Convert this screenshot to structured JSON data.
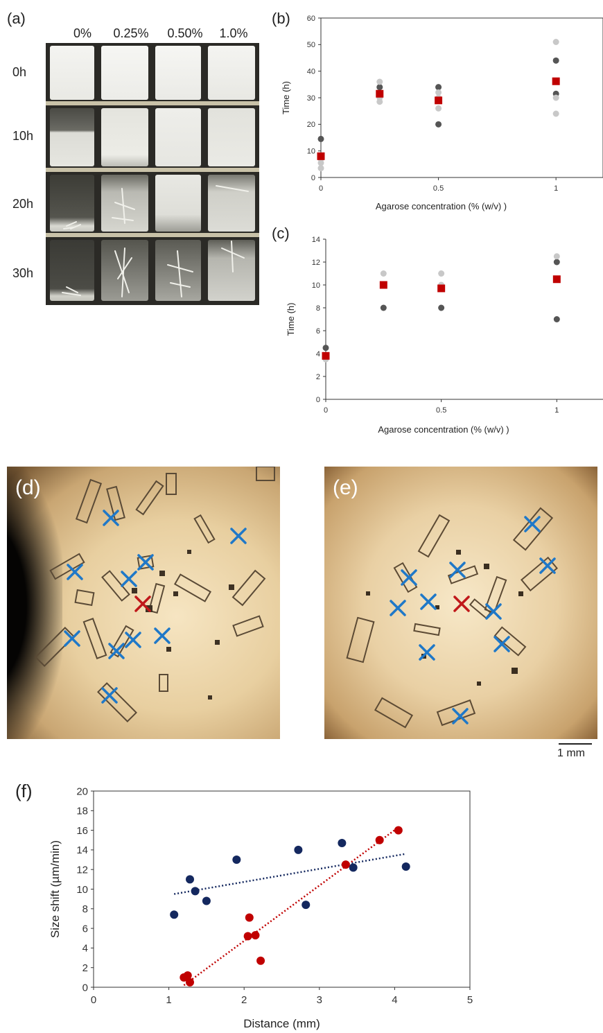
{
  "panel_a": {
    "letter": "(a)",
    "columns": [
      "0%",
      "0.25%",
      "0.50%",
      "1.0%"
    ],
    "rows": [
      "0h",
      "10h",
      "20h",
      "30h"
    ]
  },
  "chart_data": [
    {
      "panel": "(b)",
      "type": "scatter",
      "xlabel": "Agarose concentration (% (w/v) )",
      "ylabel": "Time (h)",
      "xlim": [
        0,
        1.2
      ],
      "ylim": [
        0,
        60
      ],
      "yticks": [
        0,
        10,
        20,
        30,
        40,
        50,
        60
      ],
      "xticks": [
        "0",
        "0.5",
        "1"
      ],
      "xtick_values": [
        0,
        0.5,
        1
      ],
      "series": [
        {
          "role": "replicates-dark",
          "color": "#555555",
          "x": [
            0,
            0.25,
            0.5,
            0.5,
            1,
            1
          ],
          "y": [
            14.5,
            34,
            34,
            20,
            44,
            31.5
          ]
        },
        {
          "role": "replicates-light",
          "color": "#c8c8c8",
          "x": [
            0,
            0,
            0,
            0.25,
            0.25,
            0.25,
            0.5,
            0.5,
            0.5,
            1,
            1,
            1
          ],
          "y": [
            3.5,
            5.5,
            7,
            36,
            30,
            28.5,
            32,
            30,
            26,
            51,
            30,
            24
          ]
        },
        {
          "role": "mean",
          "color": "#c00000",
          "marker": "square",
          "x": [
            0,
            0.25,
            0.5,
            1
          ],
          "y": [
            8,
            31.5,
            29,
            36.2
          ]
        }
      ]
    },
    {
      "panel": "(c)",
      "type": "scatter",
      "xlabel": "Agarose concentration (% (w/v) )",
      "ylabel": "Time (h)",
      "xlim": [
        0,
        1.2
      ],
      "ylim": [
        0,
        14
      ],
      "yticks": [
        0,
        2,
        4,
        6,
        8,
        10,
        12,
        14
      ],
      "xticks": [
        "0",
        "0.5",
        "1"
      ],
      "xtick_values": [
        0,
        0.5,
        1
      ],
      "series": [
        {
          "role": "replicates-dark",
          "color": "#555555",
          "x": [
            0,
            0.25,
            0.5,
            1,
            1
          ],
          "y": [
            4.5,
            8,
            8,
            7,
            12
          ]
        },
        {
          "role": "replicates-light",
          "color": "#c8c8c8",
          "x": [
            0,
            0.25,
            0.5,
            0.5,
            1
          ],
          "y": [
            3.5,
            11,
            11,
            10,
            12.5
          ]
        },
        {
          "role": "mean",
          "color": "#c00000",
          "marker": "square",
          "x": [
            0,
            0.25,
            0.5,
            1
          ],
          "y": [
            3.8,
            10,
            9.7,
            10.5
          ]
        }
      ]
    },
    {
      "panel": "(f)",
      "type": "scatter",
      "xlabel": "Distance (mm)",
      "ylabel": "Size shift (µm/min)",
      "xlim": [
        0,
        5
      ],
      "ylim": [
        0,
        20
      ],
      "xticks": [
        0,
        1,
        2,
        3,
        4,
        5
      ],
      "yticks": [
        0,
        2,
        4,
        6,
        8,
        10,
        12,
        14,
        16,
        18,
        20
      ],
      "series": [
        {
          "role": "blue",
          "color": "#14285f",
          "x": [
            1.07,
            1.28,
            1.35,
            1.5,
            1.9,
            2.72,
            2.82,
            3.3,
            3.45,
            4.15
          ],
          "y": [
            7.4,
            11,
            9.8,
            8.8,
            13,
            14,
            8.4,
            14.7,
            12.2,
            12.3
          ],
          "trend": [
            [
              1.07,
              9.5
            ],
            [
              4.15,
              13.6
            ]
          ]
        },
        {
          "role": "red",
          "color": "#c00000",
          "x": [
            1.2,
            1.25,
            1.28,
            2.05,
            2.07,
            2.15,
            2.22,
            3.35,
            3.8,
            4.05
          ],
          "y": [
            1.0,
            1.2,
            0.5,
            5.2,
            7.1,
            5.3,
            2.7,
            12.5,
            15,
            16
          ],
          "trend": [
            [
              1.2,
              0.2
            ],
            [
              4.05,
              16.3
            ]
          ]
        }
      ]
    }
  ],
  "panel_d": {
    "letter": "(d)"
  },
  "panel_e": {
    "letter": "(e)"
  },
  "scale_bar": {
    "label": "1 mm"
  }
}
